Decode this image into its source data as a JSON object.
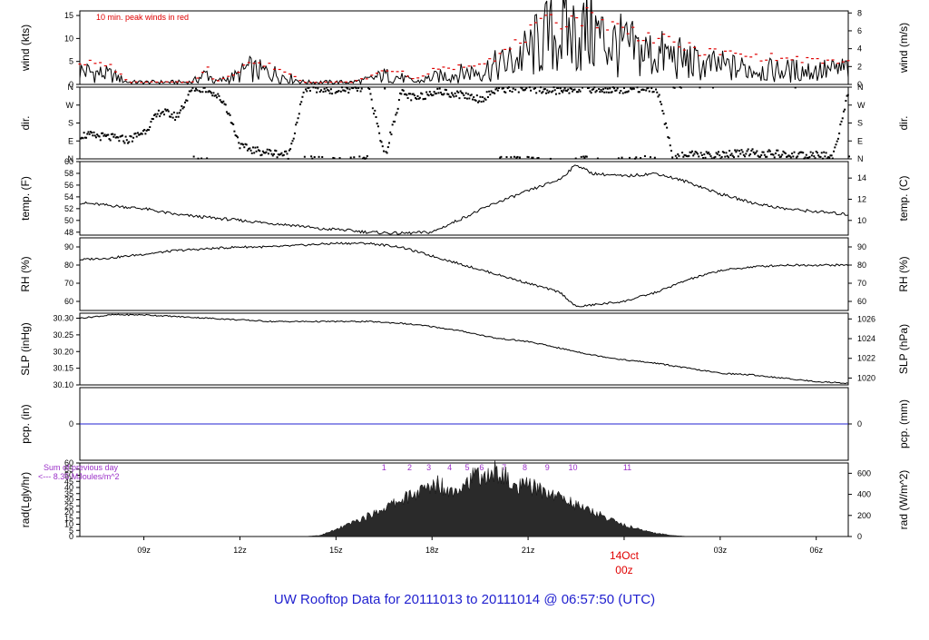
{
  "footer": {
    "title": "UW Rooftop Data for 20111013  to  20111014 @ 06:57:50  (UTC)",
    "title_color": "#1f1fcf"
  },
  "colors": {
    "line": "#000000",
    "peak": "#e00000",
    "pcp": "#2020d0",
    "rad_annot": "#9b30c8",
    "date_marker": "#e00000"
  },
  "chart_data": [
    {
      "type": "line",
      "name": "wind",
      "ylabel": "wind (kts)",
      "ylabel_right": "wind (m/s)",
      "ylim": [
        0,
        16
      ],
      "yticks": [
        0,
        5,
        10,
        15
      ],
      "ylim_right_ms": [
        0,
        8.23
      ],
      "yticks_right": [
        0,
        2,
        4,
        6,
        8
      ],
      "annotation": "10 min. peak winds in red",
      "x_hours": [
        0,
        1,
        1.5,
        2.5,
        3.5,
        4,
        4.2,
        5,
        5.2,
        5.5,
        6,
        6.5,
        7,
        7.5,
        8,
        8.5,
        9,
        9.5,
        10,
        10.5,
        11,
        11.5,
        12,
        12.5,
        13,
        13.5,
        14,
        14.5,
        15,
        15.5,
        16,
        16.5,
        17,
        17.5,
        18,
        18.5,
        19,
        19.5,
        20,
        20.5,
        21,
        21.5,
        22,
        22.5,
        23,
        23.5,
        24
      ],
      "values": [
        3,
        2,
        0.5,
        0.5,
        0.5,
        2.5,
        0.5,
        2,
        3.5,
        3,
        2.5,
        1.5,
        0.5,
        0.5,
        0.5,
        0.5,
        1,
        2,
        1.5,
        0.5,
        1.5,
        2,
        2.5,
        3,
        4,
        5,
        7,
        10,
        11,
        11,
        11.5,
        9,
        8,
        7,
        6.5,
        6,
        5,
        4,
        4,
        3.5,
        3.5,
        3,
        3,
        3,
        3,
        3,
        3.5
      ],
      "peak_values": [
        5,
        4,
        0.5,
        0.5,
        0.5,
        3.5,
        0.5,
        3,
        5,
        4.5,
        4,
        2.5,
        0.5,
        0.5,
        0.5,
        0.5,
        1.5,
        3,
        3,
        1,
        3,
        3.5,
        4,
        5,
        6,
        8,
        11,
        13,
        14,
        14.5,
        15,
        13,
        12,
        11,
        10,
        9,
        8,
        7,
        7,
        6.5,
        6,
        6,
        5.5,
        5.5,
        5,
        5,
        5
      ]
    },
    {
      "type": "scatter",
      "name": "dir",
      "ylabel": "dir.",
      "ylabel_right": "dir.",
      "ylim": [
        0,
        360
      ],
      "yticks": [
        0,
        90,
        180,
        270,
        360
      ],
      "ytick_labels": [
        "N",
        "E",
        "S",
        "W",
        "N"
      ],
      "x_hours": [
        0,
        0.5,
        1,
        1.5,
        2,
        2.5,
        3,
        3.5,
        4,
        4.5,
        5,
        5.5,
        6,
        6.5,
        7,
        7.5,
        8,
        8.5,
        9,
        9.5,
        10,
        10.5,
        11,
        11.5,
        12,
        12.5,
        13,
        13.5,
        14,
        14.5,
        15,
        15.5,
        16,
        16.5,
        17,
        17.5,
        18,
        18.5,
        19,
        19.5,
        20,
        20.5,
        21,
        21.5,
        22,
        22.5,
        23,
        23.5,
        24
      ],
      "values": [
        120,
        115,
        105,
        95,
        140,
        240,
        210,
        355,
        350,
        280,
        60,
        40,
        30,
        20,
        355,
        350,
        345,
        350,
        355,
        5,
        330,
        300,
        340,
        330,
        320,
        300,
        350,
        355,
        350,
        345,
        340,
        355,
        350,
        345,
        350,
        355,
        350,
        10,
        20,
        15,
        20,
        25,
        30,
        25,
        20,
        15,
        20,
        10,
        355
      ]
    },
    {
      "type": "line",
      "name": "temp",
      "ylabel": "temp. (F)",
      "ylabel_right": "temp. (C)",
      "ylim": [
        47.5,
        60
      ],
      "yticks": [
        48,
        50,
        52,
        54,
        56,
        58,
        60
      ],
      "yticks_right": [
        10,
        12,
        14
      ],
      "x_hours": [
        0,
        1,
        2,
        3,
        4,
        5,
        6,
        7,
        7.5,
        8,
        9,
        10,
        11,
        12,
        13,
        14,
        15,
        15.5,
        16,
        17,
        18,
        19,
        20,
        21,
        22,
        23,
        24
      ],
      "values": [
        53,
        52.5,
        52,
        51,
        50.5,
        50,
        49.5,
        49,
        48.5,
        48.5,
        48,
        47.8,
        48,
        50.5,
        53,
        55,
        57,
        59.5,
        58,
        57.5,
        58,
        56.5,
        54.5,
        53,
        52,
        51.5,
        51
      ]
    },
    {
      "type": "line",
      "name": "RH",
      "ylabel": "RH (%)",
      "ylabel_right": "RH (%)",
      "ylim": [
        55,
        95
      ],
      "yticks": [
        60,
        70,
        80,
        90
      ],
      "yticks_right": [
        60,
        70,
        80,
        90
      ],
      "x_hours": [
        0,
        1,
        2,
        3,
        4,
        5,
        6,
        7,
        8,
        8.5,
        9,
        10,
        11,
        12,
        13,
        14,
        15,
        15.5,
        16,
        17,
        18,
        19,
        20,
        21,
        22,
        23,
        24
      ],
      "values": [
        83,
        84,
        86,
        88,
        89,
        90,
        90,
        91,
        92,
        92,
        92,
        90,
        85,
        80,
        75,
        70,
        65,
        57,
        58,
        60,
        65,
        72,
        77,
        79,
        80,
        80,
        80
      ]
    },
    {
      "type": "line",
      "name": "SLP",
      "ylabel": "SLP (inHg)",
      "ylabel_right": "SLP (hPa)",
      "ylim": [
        30.1,
        30.315
      ],
      "yticks": [
        30.1,
        30.15,
        30.2,
        30.25,
        30.3
      ],
      "ytick_labels": [
        "30.10",
        "30.15",
        "30.20",
        "30.25",
        "30.30"
      ],
      "yticks_right": [
        1020,
        1022,
        1024,
        1026
      ],
      "x_hours": [
        0,
        1,
        2,
        3,
        4,
        5,
        6,
        7,
        8,
        9,
        10,
        11,
        12,
        13,
        14,
        15,
        16,
        17,
        18,
        19,
        20,
        21,
        22,
        23,
        24
      ],
      "values": [
        30.3,
        30.31,
        30.31,
        30.305,
        30.3,
        30.295,
        30.29,
        30.29,
        30.29,
        30.29,
        30.285,
        30.275,
        30.26,
        30.24,
        30.23,
        30.21,
        30.19,
        30.175,
        30.165,
        30.15,
        30.135,
        30.13,
        30.12,
        30.11,
        30.105
      ]
    },
    {
      "type": "line",
      "name": "pcp",
      "ylabel": "pcp. (in)",
      "ylabel_right": "pcp. (mm)",
      "ylim": [
        -1,
        1
      ],
      "yticks": [
        0
      ],
      "yticks_right": [
        0
      ],
      "x_hours": [
        0,
        24
      ],
      "values": [
        0,
        0
      ]
    },
    {
      "type": "area",
      "name": "rad",
      "ylabel": "rad(Lgly/hr)",
      "ylabel_right": "rad (W/m^2)",
      "ylim": [
        0,
        60
      ],
      "yticks": [
        0,
        5,
        10,
        15,
        20,
        25,
        30,
        35,
        40,
        45,
        50,
        55,
        60
      ],
      "yticks_right": [
        0,
        200,
        400,
        600
      ],
      "annotation_lines": [
        "Sum of previous day",
        "<--- 8.35 MJoules/m^2"
      ],
      "hour_labels": [
        "1",
        "2",
        "3",
        "4",
        "5",
        "6",
        "7",
        "8",
        "9",
        "10",
        "11"
      ],
      "hour_label_x": [
        9.5,
        10.3,
        10.9,
        11.55,
        12.1,
        12.55,
        13.25,
        13.9,
        14.6,
        15.4,
        17.1
      ],
      "x_hours": [
        0,
        7,
        7.5,
        8,
        8.5,
        9,
        9.5,
        10,
        10.5,
        11,
        11.2,
        11.5,
        12,
        12.5,
        12.7,
        13,
        13.3,
        13.6,
        14,
        14.5,
        15,
        15.5,
        16,
        16.5,
        17,
        17.5,
        18,
        18.5,
        19,
        24
      ],
      "values": [
        0,
        0,
        1,
        6,
        12,
        18,
        25,
        32,
        38,
        44,
        48,
        40,
        47,
        55,
        50,
        58,
        52,
        42,
        45,
        40,
        35,
        28,
        22,
        16,
        10,
        6,
        3,
        1,
        0,
        0
      ]
    }
  ],
  "xaxis": {
    "tick_labels": [
      "09z",
      "12z",
      "15z",
      "18z",
      "21z",
      "03z",
      "06z"
    ],
    "tick_hours": [
      2,
      5,
      8,
      11,
      14,
      20,
      23
    ],
    "date_marker": {
      "date": "14Oct",
      "time": "00z",
      "hour": 17
    },
    "start_offset": "07z",
    "span_hours": 24
  }
}
